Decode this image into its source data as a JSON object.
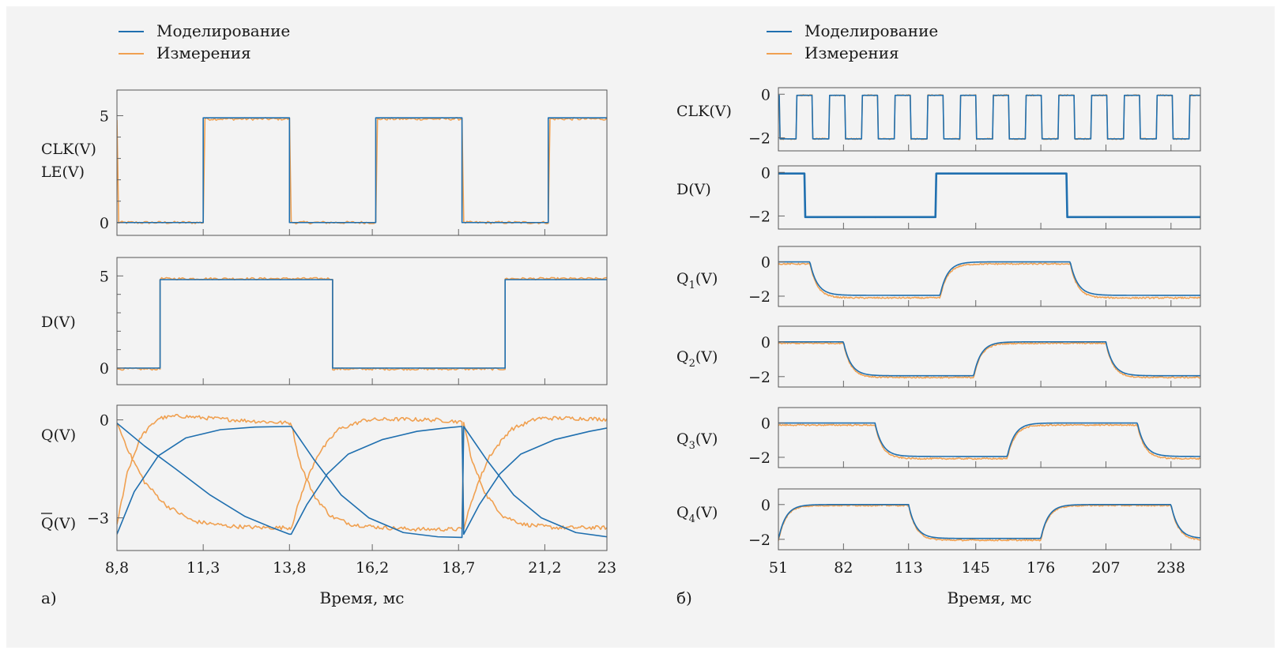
{
  "colors": {
    "simulation": "#1f6faf",
    "measurement": "#f0a050",
    "background": "#f3f3f3"
  },
  "chart_data": [
    {
      "type": "line",
      "panel": "a",
      "caption": "а)",
      "xlabel": "Время, мс",
      "xlim": [
        8.8,
        23
      ],
      "xticks": [
        "8,8",
        "11,3",
        "13,8",
        "16,2",
        "18,7",
        "21,2",
        "23"
      ],
      "xtick_values": [
        8.8,
        11.3,
        13.8,
        16.2,
        18.7,
        21.2,
        23
      ],
      "legend": [
        "Моделирование",
        "Измерения"
      ],
      "subplots": [
        {
          "ylabels": [
            "CLK(V)",
            "LE(V)"
          ],
          "ylim": [
            -0.6,
            6.2
          ],
          "yticks": [
            "0",
            "5"
          ],
          "ytick_values": [
            0,
            5
          ],
          "series": [
            {
              "name": "Моделирование",
              "x": [
                8.8,
                11.3,
                11.3,
                13.8,
                13.8,
                16.3,
                16.3,
                18.8,
                18.8,
                21.3,
                21.3,
                23.0
              ],
              "y": [
                0,
                0,
                4.9,
                4.9,
                0,
                0,
                4.9,
                4.9,
                0,
                0,
                4.9,
                4.9
              ]
            },
            {
              "name": "Измерения",
              "x": [
                8.8,
                8.85,
                11.3,
                11.35,
                13.8,
                13.85,
                16.3,
                16.35,
                18.8,
                18.85,
                21.3,
                21.35,
                23.0
              ],
              "y": [
                4.8,
                0,
                0,
                4.85,
                4.85,
                0,
                0,
                4.85,
                4.85,
                0,
                0,
                4.85,
                4.85
              ]
            }
          ]
        },
        {
          "ylabels": [
            "D(V)"
          ],
          "ylim": [
            -0.9,
            6.0
          ],
          "yticks": [
            "0",
            "5"
          ],
          "ytick_values": [
            0,
            5
          ],
          "series": [
            {
              "name": "Моделирование",
              "x": [
                8.8,
                10.05,
                10.05,
                15.05,
                15.05,
                20.05,
                20.05,
                23.0
              ],
              "y": [
                0,
                0,
                4.8,
                4.8,
                0,
                0,
                4.8,
                4.8
              ]
            },
            {
              "name": "Измерения",
              "x": [
                8.8,
                10.05,
                10.05,
                15.05,
                15.05,
                20.05,
                20.05,
                23.0
              ],
              "y": [
                -0.05,
                -0.05,
                4.85,
                4.85,
                -0.05,
                -0.05,
                4.85,
                4.85
              ]
            }
          ]
        },
        {
          "ylabels": [
            "Q(V)",
            "Q(V)"
          ],
          "ylabel_overline": [
            false,
            true
          ],
          "ylim": [
            -4.0,
            0.45
          ],
          "yticks": [
            "0",
            "−3"
          ],
          "ytick_values": [
            0,
            -3
          ],
          "series": [
            {
              "name": "Моделирование",
              "x": [
                8.8,
                9.6,
                10.5,
                11.5,
                12.5,
                13.3,
                13.8,
                13.85,
                14.3,
                14.9,
                15.5,
                16.5,
                17.5,
                18.3,
                18.8,
                18.85,
                19.3,
                19.9,
                20.5,
                21.5,
                22.5,
                23.0
              ],
              "y": [
                -0.1,
                -0.8,
                -1.5,
                -2.3,
                -2.95,
                -3.3,
                -3.5,
                -3.5,
                -2.6,
                -1.65,
                -1.05,
                -0.6,
                -0.35,
                -0.25,
                -0.2,
                -3.5,
                -2.6,
                -1.65,
                -1.05,
                -0.6,
                -0.35,
                -0.25
              ]
            },
            {
              "name": "Моделирование",
              "x": [
                8.8,
                9.3,
                10.0,
                10.8,
                11.8,
                12.8,
                13.8,
                13.85,
                14.5,
                15.3,
                16.1,
                17.1,
                18.1,
                18.8,
                18.85,
                19.5,
                20.3,
                21.1,
                22.1,
                23.0
              ],
              "y": [
                -3.5,
                -2.2,
                -1.1,
                -0.55,
                -0.3,
                -0.22,
                -0.2,
                -0.2,
                -1.2,
                -2.3,
                -3.0,
                -3.45,
                -3.58,
                -3.6,
                -0.2,
                -1.2,
                -2.3,
                -3.0,
                -3.45,
                -3.58
              ]
            },
            {
              "name": "Измерения",
              "x": [
                8.8,
                9.2,
                9.6,
                10.2,
                11.0,
                12.0,
                13.0,
                13.7,
                13.8,
                13.85,
                14.2,
                14.6,
                15.2,
                16.0,
                17.0,
                18.0,
                18.7,
                18.8,
                18.85,
                19.2,
                19.6,
                20.2,
                21.0,
                22.0,
                23.0
              ],
              "y": [
                -0.1,
                -1.1,
                -1.9,
                -2.6,
                -3.1,
                -3.25,
                -3.3,
                -3.3,
                -3.3,
                -3.3,
                -2.1,
                -1.1,
                -0.3,
                0.0,
                0.02,
                0.0,
                -0.05,
                -0.1,
                -3.3,
                -2.1,
                -1.1,
                -0.3,
                0.05,
                0.05,
                0.02
              ]
            },
            {
              "name": "Измерения",
              "x": [
                8.8,
                9.1,
                9.5,
                10.0,
                10.6,
                11.5,
                12.5,
                13.5,
                13.8,
                13.85,
                14.1,
                14.5,
                15.0,
                15.6,
                16.5,
                17.5,
                18.5,
                18.8,
                18.85,
                19.1,
                19.5,
                20.0,
                20.6,
                21.5,
                22.5,
                23.0
              ],
              "y": [
                -3.2,
                -1.6,
                -0.5,
                0.05,
                0.12,
                0.05,
                -0.02,
                -0.08,
                -0.1,
                -0.1,
                -1.3,
                -2.3,
                -2.95,
                -3.2,
                -3.3,
                -3.35,
                -3.35,
                -3.35,
                -0.1,
                -1.3,
                -2.3,
                -2.95,
                -3.2,
                -3.3,
                -3.3,
                -3.3
              ]
            }
          ]
        }
      ]
    },
    {
      "type": "line",
      "panel": "б",
      "caption": "б)",
      "xlabel": "Время, мс",
      "xlim": [
        51,
        252
      ],
      "xticks": [
        "51",
        "82",
        "113",
        "145",
        "176",
        "207",
        "238"
      ],
      "xtick_values": [
        51,
        82,
        113,
        145,
        176,
        207,
        238
      ],
      "legend": [
        "Моделирование",
        "Измерения"
      ],
      "subplots": [
        {
          "ylabels": [
            "CLK(V)"
          ],
          "subscript": "",
          "ylim": [
            -2.6,
            0.3
          ],
          "yticks": [
            "0",
            "−2"
          ],
          "ytick_values": [
            0,
            -2
          ],
          "signal": "clock",
          "period": 15.6,
          "high_start": 59.5,
          "high_width": 7.8,
          "low": -2.05,
          "high": -0.05,
          "noise": 0.03
        },
        {
          "ylabels": [
            "D(V)"
          ],
          "subscript": "",
          "ylim": [
            -2.6,
            0.3
          ],
          "yticks": [
            "0",
            "−2"
          ],
          "ytick_values": [
            0,
            -2
          ],
          "signal": "square",
          "edges": [
            [
              51,
              0
            ],
            [
              63.5,
              -2
            ],
            [
              126,
              0
            ],
            [
              188.5,
              -2
            ]
          ],
          "low": -2.05,
          "high": -0.05,
          "noise": 0.02,
          "thick": true
        },
        {
          "ylabels": [
            "Q",
            "(V)"
          ],
          "subscript": "1",
          "ylim": [
            -2.6,
            0.9
          ],
          "yticks": [
            "0",
            "−2"
          ],
          "ytick_values": [
            0,
            -2
          ],
          "signal": "exp",
          "edges": [
            [
              51,
              0
            ],
            [
              66,
              -2
            ],
            [
              128,
              0
            ],
            [
              190,
              -2
            ]
          ],
          "low": -1.95,
          "high": 0.0,
          "tau": 3.5,
          "mlow": -2.1,
          "mhigh": -0.12,
          "noise": 0.04
        },
        {
          "ylabels": [
            "Q",
            "(V)"
          ],
          "subscript": "2",
          "ylim": [
            -2.6,
            0.9
          ],
          "yticks": [
            "0",
            "−2"
          ],
          "ytick_values": [
            0,
            -2
          ],
          "signal": "exp",
          "edges": [
            [
              51,
              0
            ],
            [
              82,
              -2
            ],
            [
              144,
              0
            ],
            [
              207,
              -2
            ]
          ],
          "low": -1.95,
          "high": 0.0,
          "tau": 3.5,
          "mlow": -2.05,
          "mhigh": -0.08,
          "noise": 0.04
        },
        {
          "ylabels": [
            "Q",
            "(V)"
          ],
          "subscript": "3",
          "ylim": [
            -2.6,
            0.9
          ],
          "yticks": [
            "0",
            "−2"
          ],
          "ytick_values": [
            0,
            -2
          ],
          "signal": "exp",
          "edges": [
            [
              51,
              0
            ],
            [
              97,
              -2
            ],
            [
              160,
              0
            ],
            [
              222,
              -2
            ]
          ],
          "low": -1.95,
          "high": 0.0,
          "tau": 3.5,
          "mlow": -2.08,
          "mhigh": -0.12,
          "noise": 0.04
        },
        {
          "ylabels": [
            "Q",
            "(V)"
          ],
          "subscript": "4",
          "ylim": [
            -2.6,
            0.9
          ],
          "yticks": [
            "0",
            "−2"
          ],
          "ytick_values": [
            0,
            -2
          ],
          "signal": "exp",
          "edges": [
            [
              51,
              -2
            ],
            [
              51.1,
              0
            ],
            [
              113,
              -2
            ],
            [
              176,
              0
            ],
            [
              238,
              -2
            ]
          ],
          "low": -1.95,
          "high": 0.0,
          "tau": 3.5,
          "mlow": -2.05,
          "mhigh": -0.05,
          "noise": 0.04
        }
      ]
    }
  ]
}
